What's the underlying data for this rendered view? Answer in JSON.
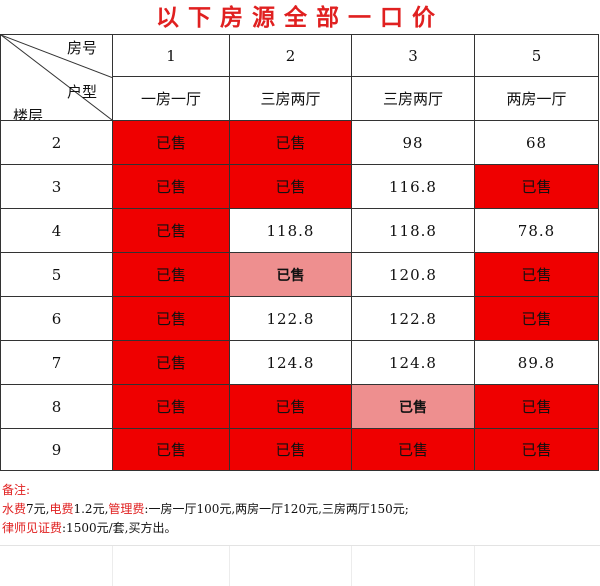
{
  "title": "以下房源全部一口价",
  "corner": {
    "room_no": "房号",
    "unit_type": "户型",
    "floor": "楼层"
  },
  "room_numbers": [
    "1",
    "2",
    "3",
    "5"
  ],
  "unit_types": [
    "一房一厅",
    "三房两厅",
    "三房两厅",
    "两房一厅"
  ],
  "rows": [
    {
      "floor": "2",
      "cells": [
        {
          "text": "已售",
          "status": "sold"
        },
        {
          "text": "已售",
          "status": "sold"
        },
        {
          "text": "98",
          "status": "available"
        },
        {
          "text": "68",
          "status": "available"
        }
      ]
    },
    {
      "floor": "3",
      "cells": [
        {
          "text": "已售",
          "status": "sold"
        },
        {
          "text": "已售",
          "status": "sold"
        },
        {
          "text": "116.8",
          "status": "available"
        },
        {
          "text": "已售",
          "status": "sold"
        }
      ]
    },
    {
      "floor": "4",
      "cells": [
        {
          "text": "已售",
          "status": "sold"
        },
        {
          "text": "118.8",
          "status": "available"
        },
        {
          "text": "118.8",
          "status": "available"
        },
        {
          "text": "78.8",
          "status": "available"
        }
      ]
    },
    {
      "floor": "5",
      "cells": [
        {
          "text": "已售",
          "status": "sold"
        },
        {
          "text": "已售",
          "status": "sold-light"
        },
        {
          "text": "120.8",
          "status": "available"
        },
        {
          "text": "已售",
          "status": "sold"
        }
      ]
    },
    {
      "floor": "6",
      "cells": [
        {
          "text": "已售",
          "status": "sold"
        },
        {
          "text": "122.8",
          "status": "available"
        },
        {
          "text": "122.8",
          "status": "available"
        },
        {
          "text": "已售",
          "status": "sold"
        }
      ]
    },
    {
      "floor": "7",
      "cells": [
        {
          "text": "已售",
          "status": "sold"
        },
        {
          "text": "124.8",
          "status": "available"
        },
        {
          "text": "124.8",
          "status": "available"
        },
        {
          "text": "89.8",
          "status": "available"
        }
      ]
    },
    {
      "floor": "8",
      "cells": [
        {
          "text": "已售",
          "status": "sold"
        },
        {
          "text": "已售",
          "status": "sold"
        },
        {
          "text": "已售",
          "status": "sold-light"
        },
        {
          "text": "已售",
          "status": "sold"
        }
      ]
    },
    {
      "floor": "9",
      "cells": [
        {
          "text": "已售",
          "status": "sold"
        },
        {
          "text": "已售",
          "status": "sold"
        },
        {
          "text": "已售",
          "status": "sold"
        },
        {
          "text": "已售",
          "status": "sold"
        }
      ]
    }
  ],
  "notes": {
    "heading": "备注:",
    "water_label": "水费",
    "water_value": "7元,",
    "electric_label": "电费",
    "electric_value": "1.2元,",
    "management_label": "管理费",
    "management_value": ":一房一厅100元,两房一厅120元,三房两厅150元;",
    "lawyer_label": "律师见证费",
    "lawyer_value": ":1500元/套,买方出。"
  },
  "colors": {
    "sold": "#ef0000",
    "sold_light": "#ee8f8f",
    "title": "#e02020",
    "price": "#c21f1f"
  }
}
